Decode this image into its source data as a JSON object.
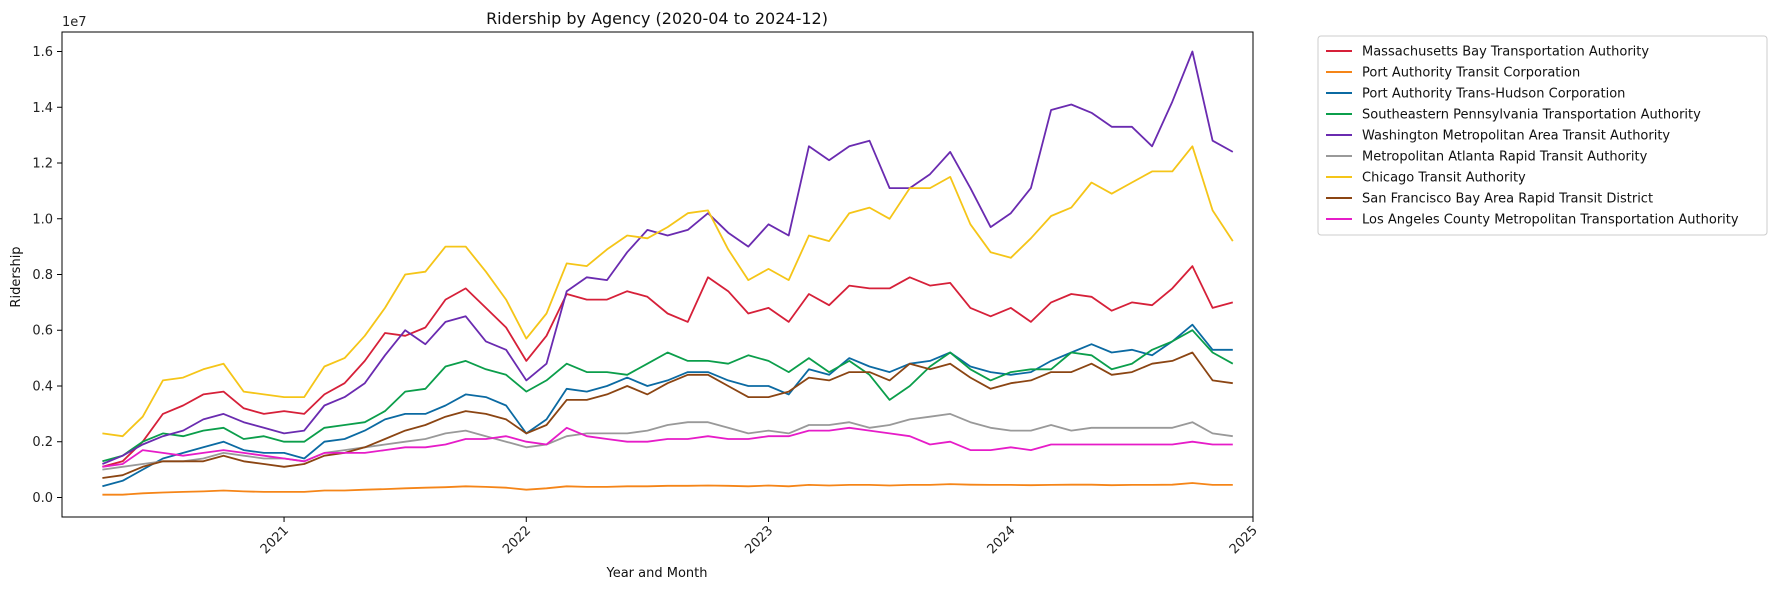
{
  "chart_data": {
    "type": "line",
    "title": "Ridership by Agency (2020-04 to 2024-12)",
    "xlabel": "Year and Month",
    "ylabel": "Ridership",
    "y_multiplier_label": "1e7",
    "y_scale": 10000000,
    "xlim": [
      "2020-02",
      "2025-01"
    ],
    "ylim": [
      -0.07,
      1.67
    ],
    "x_start": "2020-04",
    "x_end": "2024-12",
    "x_ticks": [
      {
        "month": "2021-01",
        "label": "2021"
      },
      {
        "month": "2022-01",
        "label": "2022"
      },
      {
        "month": "2023-01",
        "label": "2023"
      },
      {
        "month": "2024-01",
        "label": "2024"
      },
      {
        "month": "2025-01",
        "label": "2025"
      }
    ],
    "y_ticks": [
      {
        "value": 0.0,
        "label": "0.0"
      },
      {
        "value": 0.2,
        "label": "0.2"
      },
      {
        "value": 0.4,
        "label": "0.4"
      },
      {
        "value": 0.6,
        "label": "0.6"
      },
      {
        "value": 0.8,
        "label": "0.8"
      },
      {
        "value": 1.0,
        "label": "1.0"
      },
      {
        "value": 1.2,
        "label": "1.2"
      },
      {
        "value": 1.4,
        "label": "1.4"
      },
      {
        "value": 1.6,
        "label": "1.6"
      }
    ],
    "grid": false,
    "legend_position": "outside-top-right",
    "series": [
      {
        "name": "Massachusetts Bay Transportation Authority",
        "color": "#d62039",
        "values": [
          0.11,
          0.13,
          0.2,
          0.3,
          0.33,
          0.37,
          0.38,
          0.32,
          0.3,
          0.31,
          0.3,
          0.37,
          0.41,
          0.49,
          0.59,
          0.58,
          0.61,
          0.71,
          0.75,
          0.68,
          0.61,
          0.49,
          0.58,
          0.73,
          0.71,
          0.71,
          0.74,
          0.72,
          0.66,
          0.63,
          0.79,
          0.74,
          0.66,
          0.68,
          0.63,
          0.73,
          0.69,
          0.76,
          0.75,
          0.75,
          0.79,
          0.76,
          0.77,
          0.68,
          0.65,
          0.68,
          0.63,
          0.7,
          0.73,
          0.72,
          0.67,
          0.7,
          0.69,
          0.75,
          0.83,
          0.68,
          0.7
        ]
      },
      {
        "name": "Port Authority Transit Corporation",
        "color": "#f58518",
        "values": [
          0.01,
          0.01,
          0.015,
          0.018,
          0.02,
          0.022,
          0.025,
          0.022,
          0.02,
          0.02,
          0.02,
          0.025,
          0.025,
          0.028,
          0.03,
          0.033,
          0.035,
          0.037,
          0.04,
          0.038,
          0.035,
          0.028,
          0.033,
          0.04,
          0.038,
          0.038,
          0.04,
          0.04,
          0.042,
          0.042,
          0.043,
          0.042,
          0.04,
          0.043,
          0.04,
          0.045,
          0.043,
          0.045,
          0.045,
          0.043,
          0.045,
          0.045,
          0.048,
          0.046,
          0.045,
          0.045,
          0.044,
          0.045,
          0.046,
          0.046,
          0.044,
          0.045,
          0.045,
          0.046,
          0.052,
          0.045,
          0.045
        ]
      },
      {
        "name": "Port Authority Trans-Hudson Corporation",
        "color": "#0b6aa2",
        "values": [
          0.04,
          0.06,
          0.1,
          0.14,
          0.16,
          0.18,
          0.2,
          0.17,
          0.16,
          0.16,
          0.14,
          0.2,
          0.21,
          0.24,
          0.28,
          0.3,
          0.3,
          0.33,
          0.37,
          0.36,
          0.33,
          0.23,
          0.28,
          0.39,
          0.38,
          0.4,
          0.43,
          0.4,
          0.42,
          0.45,
          0.45,
          0.42,
          0.4,
          0.4,
          0.37,
          0.46,
          0.44,
          0.5,
          0.47,
          0.45,
          0.48,
          0.49,
          0.52,
          0.47,
          0.45,
          0.44,
          0.45,
          0.49,
          0.52,
          0.55,
          0.52,
          0.53,
          0.51,
          0.56,
          0.62,
          0.53,
          0.53
        ]
      },
      {
        "name": "Southeastern Pennsylvania Transportation Authority",
        "color": "#0b9e4b",
        "values": [
          0.13,
          0.15,
          0.2,
          0.23,
          0.22,
          0.24,
          0.25,
          0.21,
          0.22,
          0.2,
          0.2,
          0.25,
          0.26,
          0.27,
          0.31,
          0.38,
          0.39,
          0.47,
          0.49,
          0.46,
          0.44,
          0.38,
          0.42,
          0.48,
          0.45,
          0.45,
          0.44,
          0.48,
          0.52,
          0.49,
          0.49,
          0.48,
          0.51,
          0.49,
          0.45,
          0.5,
          0.45,
          0.49,
          0.44,
          0.35,
          0.4,
          0.47,
          0.52,
          0.46,
          0.42,
          0.45,
          0.46,
          0.46,
          0.52,
          0.51,
          0.46,
          0.48,
          0.53,
          0.56,
          0.6,
          0.52,
          0.48
        ]
      },
      {
        "name": "Washington Metropolitan Area Transit Authority",
        "color": "#6a2bb0",
        "values": [
          0.12,
          0.15,
          0.19,
          0.22,
          0.24,
          0.28,
          0.3,
          0.27,
          0.25,
          0.23,
          0.24,
          0.33,
          0.36,
          0.41,
          0.51,
          0.6,
          0.55,
          0.63,
          0.65,
          0.56,
          0.53,
          0.42,
          0.48,
          0.74,
          0.79,
          0.78,
          0.88,
          0.96,
          0.94,
          0.96,
          1.02,
          0.95,
          0.9,
          0.98,
          0.94,
          1.26,
          1.21,
          1.26,
          1.28,
          1.11,
          1.11,
          1.16,
          1.24,
          1.11,
          0.97,
          1.02,
          1.11,
          1.39,
          1.41,
          1.38,
          1.33,
          1.33,
          1.26,
          1.42,
          1.6,
          1.28,
          1.24
        ]
      },
      {
        "name": "Metropolitan Atlanta Rapid Transit Authority",
        "color": "#999999",
        "values": [
          0.1,
          0.11,
          0.12,
          0.13,
          0.13,
          0.14,
          0.16,
          0.15,
          0.14,
          0.14,
          0.13,
          0.16,
          0.17,
          0.18,
          0.19,
          0.2,
          0.21,
          0.23,
          0.24,
          0.22,
          0.2,
          0.18,
          0.19,
          0.22,
          0.23,
          0.23,
          0.23,
          0.24,
          0.26,
          0.27,
          0.27,
          0.25,
          0.23,
          0.24,
          0.23,
          0.26,
          0.26,
          0.27,
          0.25,
          0.26,
          0.28,
          0.29,
          0.3,
          0.27,
          0.25,
          0.24,
          0.24,
          0.26,
          0.24,
          0.25,
          0.25,
          0.25,
          0.25,
          0.25,
          0.27,
          0.23,
          0.22
        ]
      },
      {
        "name": "Chicago Transit Authority",
        "color": "#f5c518",
        "values": [
          0.23,
          0.22,
          0.29,
          0.42,
          0.43,
          0.46,
          0.48,
          0.38,
          0.37,
          0.36,
          0.36,
          0.47,
          0.5,
          0.58,
          0.68,
          0.8,
          0.81,
          0.9,
          0.9,
          0.81,
          0.71,
          0.57,
          0.66,
          0.84,
          0.83,
          0.89,
          0.94,
          0.93,
          0.97,
          1.02,
          1.03,
          0.89,
          0.78,
          0.82,
          0.78,
          0.94,
          0.92,
          1.02,
          1.04,
          1.0,
          1.11,
          1.11,
          1.15,
          0.98,
          0.88,
          0.86,
          0.93,
          1.01,
          1.04,
          1.13,
          1.09,
          1.13,
          1.17,
          1.17,
          1.26,
          1.03,
          0.92
        ]
      },
      {
        "name": "San Francisco Bay Area Rapid Transit District",
        "color": "#8b4513",
        "values": [
          0.07,
          0.08,
          0.11,
          0.13,
          0.13,
          0.13,
          0.15,
          0.13,
          0.12,
          0.11,
          0.12,
          0.15,
          0.16,
          0.18,
          0.21,
          0.24,
          0.26,
          0.29,
          0.31,
          0.3,
          0.28,
          0.23,
          0.26,
          0.35,
          0.35,
          0.37,
          0.4,
          0.37,
          0.41,
          0.44,
          0.44,
          0.4,
          0.36,
          0.36,
          0.38,
          0.43,
          0.42,
          0.45,
          0.45,
          0.42,
          0.48,
          0.46,
          0.48,
          0.43,
          0.39,
          0.41,
          0.42,
          0.45,
          0.45,
          0.48,
          0.44,
          0.45,
          0.48,
          0.49,
          0.52,
          0.42,
          0.41
        ]
      },
      {
        "name": "Los Angeles County Metropolitan Transportation Authority",
        "color": "#e61cc8",
        "values": [
          0.11,
          0.12,
          0.17,
          0.16,
          0.15,
          0.16,
          0.17,
          0.16,
          0.15,
          0.14,
          0.13,
          0.16,
          0.16,
          0.16,
          0.17,
          0.18,
          0.18,
          0.19,
          0.21,
          0.21,
          0.22,
          0.2,
          0.19,
          0.25,
          0.22,
          0.21,
          0.2,
          0.2,
          0.21,
          0.21,
          0.22,
          0.21,
          0.21,
          0.22,
          0.22,
          0.24,
          0.24,
          0.25,
          0.24,
          0.23,
          0.22,
          0.19,
          0.2,
          0.17,
          0.17,
          0.18,
          0.17,
          0.19,
          0.19,
          0.19,
          0.19,
          0.19,
          0.19,
          0.19,
          0.2,
          0.19,
          0.19
        ]
      }
    ]
  }
}
